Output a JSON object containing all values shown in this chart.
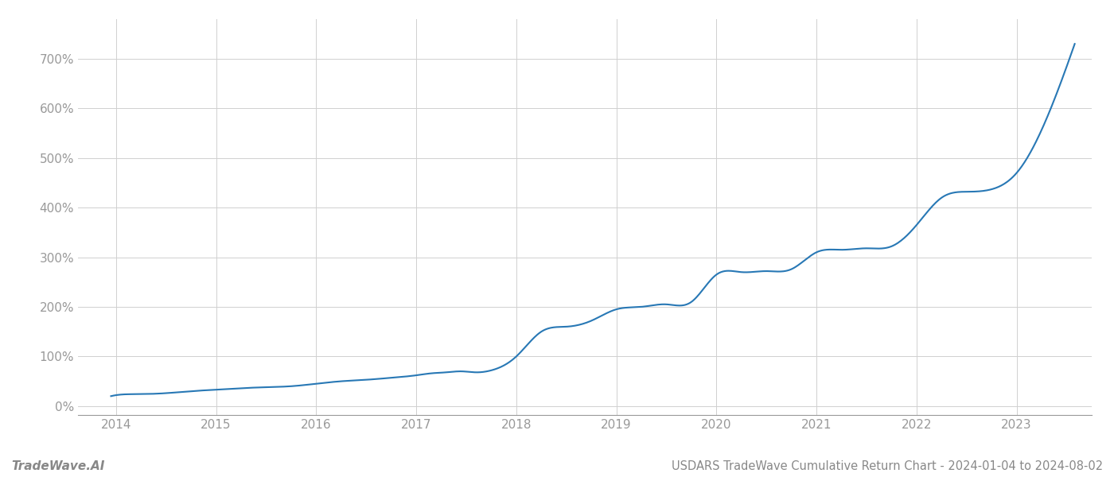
{
  "title": "USDARS TradeWave Cumulative Return Chart - 2024-01-04 to 2024-08-02",
  "watermark": "TradeWave.AI",
  "line_color": "#2878b5",
  "background_color": "#ffffff",
  "grid_color": "#d0d0d0",
  "x_years": [
    2014,
    2015,
    2016,
    2017,
    2018,
    2019,
    2020,
    2021,
    2022,
    2023
  ],
  "y_ticks": [
    0,
    100,
    200,
    300,
    400,
    500,
    600,
    700
  ],
  "xlim_start": 2013.62,
  "xlim_end": 2023.75,
  "ylim_min": -18,
  "ylim_max": 780,
  "data_x": [
    2013.95,
    2014.0,
    2014.2,
    2014.5,
    2014.75,
    2015.0,
    2015.25,
    2015.5,
    2015.75,
    2016.0,
    2016.25,
    2016.5,
    2016.75,
    2017.0,
    2017.15,
    2017.3,
    2017.45,
    2017.6,
    2017.75,
    2018.0,
    2018.25,
    2018.5,
    2018.75,
    2019.0,
    2019.25,
    2019.5,
    2019.75,
    2020.0,
    2020.25,
    2020.5,
    2020.75,
    2021.0,
    2021.25,
    2021.5,
    2021.75,
    2022.0,
    2022.25,
    2022.5,
    2022.75,
    2023.0,
    2023.3,
    2023.58
  ],
  "data_y": [
    20,
    22,
    24,
    26,
    30,
    33,
    36,
    38,
    40,
    45,
    50,
    53,
    57,
    62,
    66,
    68,
    70,
    68,
    72,
    100,
    150,
    160,
    172,
    195,
    200,
    205,
    210,
    265,
    270,
    272,
    276,
    310,
    315,
    318,
    322,
    365,
    420,
    432,
    437,
    470,
    580,
    730
  ],
  "title_fontsize": 10.5,
  "tick_fontsize": 11,
  "watermark_fontsize": 11
}
